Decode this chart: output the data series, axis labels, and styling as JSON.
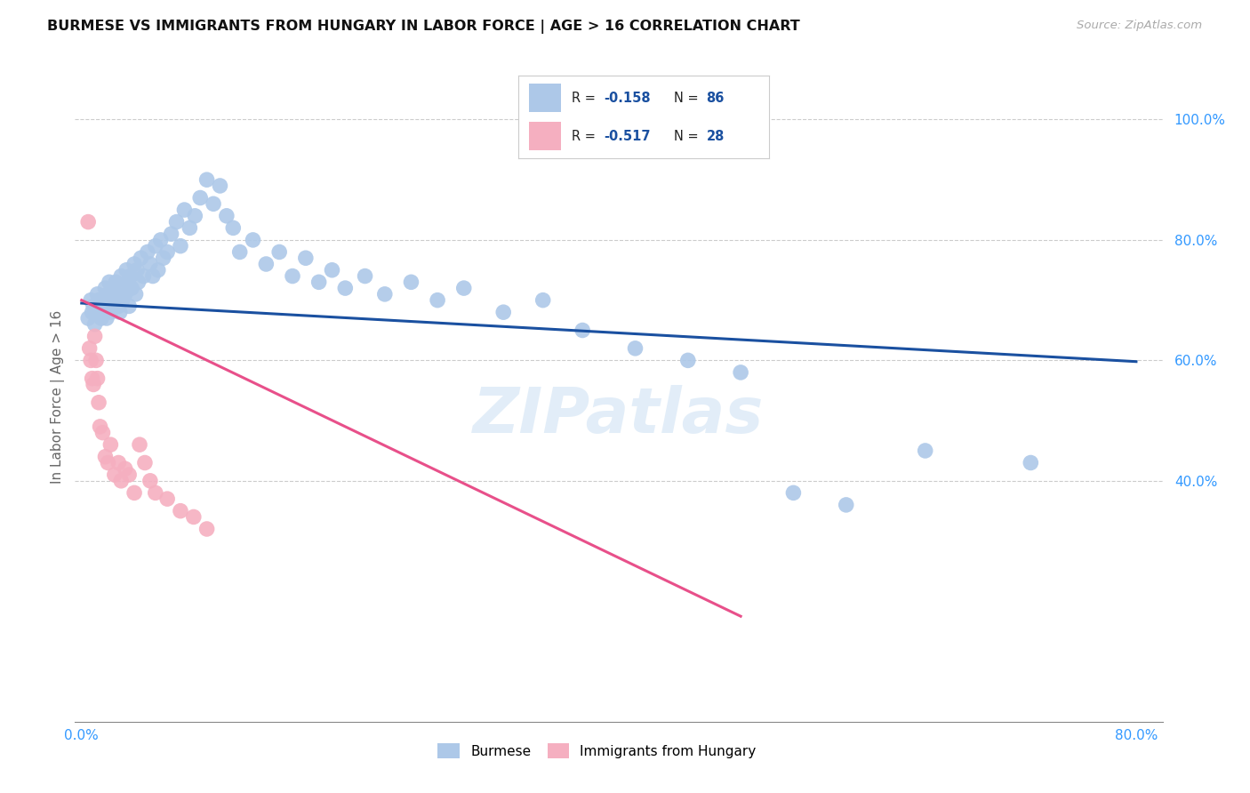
{
  "title": "BURMESE VS IMMIGRANTS FROM HUNGARY IN LABOR FORCE | AGE > 16 CORRELATION CHART",
  "source": "Source: ZipAtlas.com",
  "ylabel": "In Labor Force | Age > 16",
  "xlim": [
    -0.005,
    0.82
  ],
  "ylim": [
    0.0,
    1.08
  ],
  "ytick_vals": [
    0.4,
    0.6,
    0.8,
    1.0
  ],
  "ytick_labels": [
    "40.0%",
    "60.0%",
    "80.0%",
    "100.0%"
  ],
  "xtick_vals": [
    0.0,
    0.8
  ],
  "xtick_labels": [
    "0.0%",
    "80.0%"
  ],
  "blue_R": "-0.158",
  "blue_N": "86",
  "pink_R": "-0.517",
  "pink_N": "28",
  "blue_color": "#adc8e8",
  "pink_color": "#f5afc0",
  "blue_line_color": "#1a50a0",
  "pink_line_color": "#e8508a",
  "watermark": "ZIPatlas",
  "legend_label_blue": "Burmese",
  "legend_label_pink": "Immigrants from Hungary",
  "blue_scatter_x": [
    0.005,
    0.007,
    0.008,
    0.009,
    0.01,
    0.012,
    0.013,
    0.013,
    0.014,
    0.015,
    0.016,
    0.017,
    0.018,
    0.018,
    0.019,
    0.02,
    0.02,
    0.021,
    0.022,
    0.022,
    0.023,
    0.024,
    0.025,
    0.026,
    0.027,
    0.028,
    0.029,
    0.03,
    0.031,
    0.032,
    0.033,
    0.034,
    0.035,
    0.036,
    0.037,
    0.038,
    0.04,
    0.041,
    0.042,
    0.043,
    0.045,
    0.047,
    0.05,
    0.052,
    0.054,
    0.056,
    0.058,
    0.06,
    0.062,
    0.065,
    0.068,
    0.072,
    0.075,
    0.078,
    0.082,
    0.086,
    0.09,
    0.095,
    0.1,
    0.105,
    0.11,
    0.115,
    0.12,
    0.13,
    0.14,
    0.15,
    0.16,
    0.17,
    0.18,
    0.19,
    0.2,
    0.215,
    0.23,
    0.25,
    0.27,
    0.29,
    0.32,
    0.35,
    0.38,
    0.42,
    0.46,
    0.5,
    0.54,
    0.58,
    0.64,
    0.72
  ],
  "blue_scatter_y": [
    0.67,
    0.7,
    0.68,
    0.69,
    0.66,
    0.71,
    0.7,
    0.68,
    0.69,
    0.67,
    0.7,
    0.69,
    0.68,
    0.72,
    0.67,
    0.71,
    0.69,
    0.73,
    0.68,
    0.7,
    0.72,
    0.69,
    0.71,
    0.73,
    0.7,
    0.69,
    0.68,
    0.74,
    0.7,
    0.72,
    0.71,
    0.75,
    0.73,
    0.69,
    0.74,
    0.72,
    0.76,
    0.71,
    0.75,
    0.73,
    0.77,
    0.74,
    0.78,
    0.76,
    0.74,
    0.79,
    0.75,
    0.8,
    0.77,
    0.78,
    0.81,
    0.83,
    0.79,
    0.85,
    0.82,
    0.84,
    0.87,
    0.9,
    0.86,
    0.89,
    0.84,
    0.82,
    0.78,
    0.8,
    0.76,
    0.78,
    0.74,
    0.77,
    0.73,
    0.75,
    0.72,
    0.74,
    0.71,
    0.73,
    0.7,
    0.72,
    0.68,
    0.7,
    0.65,
    0.62,
    0.6,
    0.58,
    0.38,
    0.36,
    0.45,
    0.43
  ],
  "pink_scatter_x": [
    0.005,
    0.006,
    0.007,
    0.008,
    0.009,
    0.01,
    0.011,
    0.012,
    0.013,
    0.014,
    0.016,
    0.018,
    0.02,
    0.022,
    0.025,
    0.028,
    0.03,
    0.033,
    0.036,
    0.04,
    0.044,
    0.048,
    0.052,
    0.056,
    0.065,
    0.075,
    0.085,
    0.095
  ],
  "pink_scatter_y": [
    0.83,
    0.62,
    0.6,
    0.57,
    0.56,
    0.64,
    0.6,
    0.57,
    0.53,
    0.49,
    0.48,
    0.44,
    0.43,
    0.46,
    0.41,
    0.43,
    0.4,
    0.42,
    0.41,
    0.38,
    0.46,
    0.43,
    0.4,
    0.38,
    0.37,
    0.35,
    0.34,
    0.32
  ],
  "blue_trend_x": [
    0.0,
    0.8
  ],
  "blue_trend_y": [
    0.695,
    0.598
  ],
  "pink_trend_x": [
    0.0,
    0.5
  ],
  "pink_trend_y": [
    0.7,
    0.175
  ]
}
